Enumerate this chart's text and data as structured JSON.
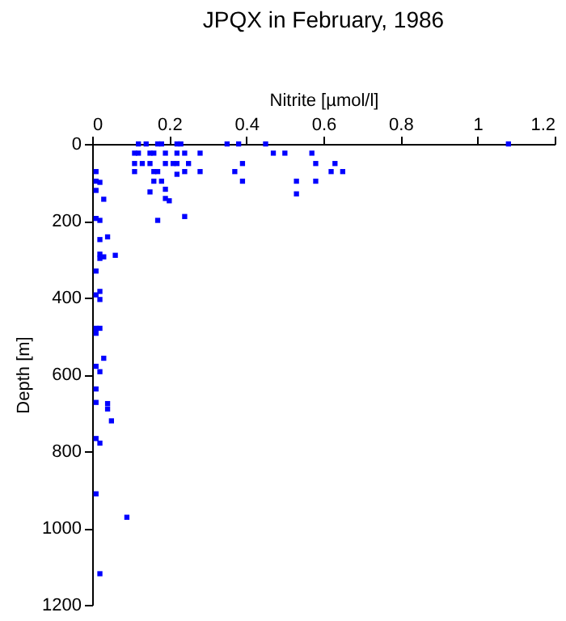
{
  "chart_data": {
    "type": "scatter",
    "title": "JPQX in February, 1986",
    "xlabel": "Nitrite [µmol/l]",
    "ylabel": "Depth [m]",
    "x": [
      0.12,
      0.14,
      0.17,
      0.18,
      0.22,
      0.23,
      0.35,
      0.38,
      0.45,
      1.08,
      0.11,
      0.12,
      0.15,
      0.16,
      0.19,
      0.22,
      0.24,
      0.28,
      0.47,
      0.5,
      0.57,
      0.11,
      0.13,
      0.15,
      0.19,
      0.21,
      0.22,
      0.25,
      0.39,
      0.58,
      0.63,
      0.01,
      0.11,
      0.16,
      0.17,
      0.24,
      0.28,
      0.37,
      0.62,
      0.65,
      0.22,
      0.01,
      0.16,
      0.18,
      0.39,
      0.53,
      0.58,
      0.02,
      0.01,
      0.15,
      0.19,
      0.53,
      0.03,
      0.19,
      0.2,
      0.24,
      0.17,
      0.01,
      0.02,
      0.04,
      0.02,
      0.06,
      0.02,
      0.03,
      0.02,
      0.01,
      0.02,
      0.01,
      0.02,
      0.01,
      0.02,
      0.01,
      0.01,
      0.03,
      0.01,
      0.02,
      0.01,
      0.04,
      0.04,
      0.05,
      0.01,
      0.02,
      0.01,
      0.09,
      0.02
    ],
    "values": [
      0,
      0,
      0,
      0,
      0,
      0,
      0,
      0,
      0,
      0,
      24,
      24,
      24,
      24,
      24,
      24,
      24,
      24,
      24,
      24,
      24,
      51,
      51,
      51,
      51,
      51,
      51,
      51,
      51,
      51,
      51,
      72,
      72,
      72,
      72,
      72,
      72,
      72,
      72,
      72,
      79,
      97,
      97,
      97,
      97,
      97,
      97,
      100,
      121,
      125,
      118,
      130,
      144,
      142,
      148,
      189,
      199,
      194,
      199,
      242,
      249,
      290,
      287,
      294,
      298,
      331,
      384,
      393,
      405,
      480,
      480,
      493,
      579,
      558,
      638,
      593,
      673,
      676,
      690,
      721,
      767,
      779,
      911,
      972,
      1119
    ],
    "color": "#0000ff",
    "marker": "square",
    "xlim": [
      0,
      1.2
    ],
    "xticks": [
      0,
      0.2,
      0.4,
      0.6,
      0.8,
      1,
      1.2
    ],
    "ylim": [
      1200,
      0
    ],
    "yticks": [
      0,
      200,
      400,
      600,
      800,
      1000,
      1200
    ]
  }
}
